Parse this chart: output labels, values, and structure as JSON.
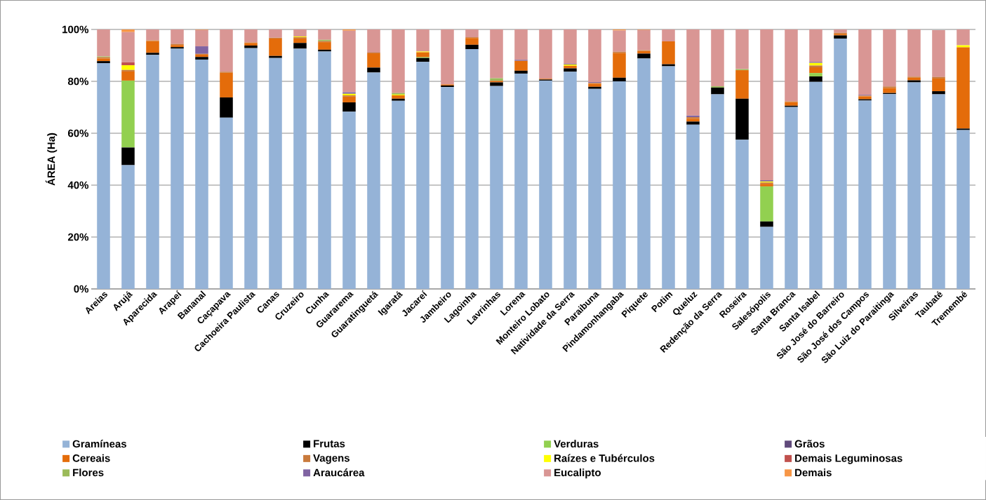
{
  "chart_data": {
    "type": "bar",
    "stacked": true,
    "ylabel": "ÁREA (Ha)",
    "ylim": [
      0,
      100
    ],
    "yticks": [
      {
        "value": 0,
        "label": "0%"
      },
      {
        "value": 20,
        "label": "20%"
      },
      {
        "value": 40,
        "label": "40%"
      },
      {
        "value": 60,
        "label": "60%"
      },
      {
        "value": 80,
        "label": "80%"
      },
      {
        "value": 100,
        "label": "100%"
      }
    ],
    "grid": "y",
    "legend": "bottom",
    "categories": [
      "Areias",
      "Arujá",
      "Aparecida",
      "Arapeí",
      "Bananal",
      "Caçapava",
      "Cachoeira Paulista",
      "Canas",
      "Cruzeiro",
      "Cunha",
      "Guararema",
      "Guaratinguetá",
      "Igaratá",
      "Jacareí",
      "Jambeiro",
      "Lagoinha",
      "Lavrinhas",
      "Lorena",
      "Monteiro Lobato",
      "Natividade da Serra",
      "Paraibuna",
      "Pindamonhangaba",
      "Piquete",
      "Potim",
      "Queluz",
      "Redenção da Serra",
      "Roseira",
      "Salesópolis",
      "Santa Branca",
      "Santa Isabel",
      "São José do Barreiro",
      "São José dos Campos",
      "São Luiz do Paraitinga",
      "Silveiras",
      "Taubaté",
      "Tremembé"
    ],
    "series": [
      {
        "name": "Gramíneas",
        "color": "#95b3d7",
        "values": [
          87,
          47.7,
          90.2,
          92.6,
          88.4,
          66,
          92.8,
          89,
          92.6,
          91.5,
          68.3,
          83.4,
          72.5,
          87.5,
          77.8,
          92.4,
          78.2,
          83,
          80.3,
          83.7,
          77.1,
          80,
          88.8,
          85.8,
          63.3,
          75,
          57.5,
          23.9,
          70.1,
          79.8,
          96.5,
          72.6,
          75.1,
          79.6,
          75,
          61.2
        ]
      },
      {
        "name": "Frutas",
        "color": "#000000",
        "values": [
          0.8,
          6.8,
          0.8,
          0.6,
          1,
          7.8,
          1,
          0.8,
          2.2,
          0.7,
          3.6,
          1.9,
          0.8,
          1.5,
          0.6,
          1.7,
          1.4,
          1.1,
          0.4,
          1.3,
          0.8,
          1.4,
          1.9,
          0.8,
          1.2,
          2.6,
          15.8,
          2.1,
          0.5,
          2.1,
          1.2,
          0.5,
          0.4,
          0.8,
          1.2,
          0.6
        ]
      },
      {
        "name": "Verduras",
        "color": "#92d050",
        "values": [
          0,
          25.8,
          0,
          0,
          0,
          0,
          0,
          0,
          0,
          0,
          0,
          0,
          0,
          0.3,
          0,
          0,
          0,
          0,
          0,
          0,
          0,
          0,
          0,
          0,
          0,
          0,
          0,
          13.5,
          0,
          1.3,
          0,
          0,
          0,
          0,
          0,
          0
        ]
      },
      {
        "name": "Grãos",
        "color": "#604a7b",
        "values": [
          0,
          0,
          0,
          0,
          0,
          0,
          0,
          0,
          0,
          0,
          0,
          0,
          0,
          0,
          0,
          0,
          0,
          0,
          0,
          0,
          0,
          0,
          0,
          0,
          0,
          0,
          0,
          0,
          0,
          0,
          0,
          0,
          0,
          0,
          0,
          0
        ]
      },
      {
        "name": "Cereais",
        "color": "#e46c0a",
        "values": [
          1,
          3.5,
          4.5,
          0.8,
          0.9,
          9.5,
          1,
          6.7,
          1.7,
          2.9,
          2.2,
          5.5,
          1.3,
          1.9,
          0.4,
          2.6,
          0.5,
          3.8,
          0.3,
          1,
          1.2,
          9.5,
          1,
          8.8,
          1.1,
          0,
          11,
          1,
          1.4,
          2.2,
          0.6,
          1.1,
          1.9,
          1,
          4.9,
          31.3
        ]
      },
      {
        "name": "Vagens",
        "color": "#c97a3c",
        "values": [
          0.5,
          0.6,
          0.3,
          0.4,
          0.3,
          0.4,
          0.2,
          0.3,
          0.5,
          0.4,
          0.5,
          0.3,
          0,
          0,
          0,
          0.3,
          0.2,
          0,
          0,
          0,
          0.3,
          0.5,
          0.3,
          0,
          0.6,
          0,
          0,
          0.5,
          0.3,
          0.7,
          0.4,
          0.3,
          0.6,
          0.4,
          0.6,
          0
        ]
      },
      {
        "name": "Raízes e Tubérculos",
        "color": "#ffff00",
        "values": [
          0,
          1.8,
          0,
          0,
          0,
          0,
          0,
          0,
          0.3,
          0,
          0.6,
          0,
          0.3,
          0.3,
          0,
          0,
          0,
          0,
          0,
          0.5,
          0,
          0,
          0,
          0,
          0,
          0,
          0,
          0.4,
          0,
          1,
          0,
          0,
          0,
          0,
          0,
          0.8
        ]
      },
      {
        "name": "Demais Leguminosas",
        "color": "#c0504d",
        "values": [
          0,
          1.2,
          0,
          0,
          0,
          0,
          0,
          0,
          0,
          0,
          0,
          0,
          0,
          0,
          0,
          0,
          0,
          0,
          0,
          0,
          0,
          0,
          0,
          0,
          0,
          0,
          0,
          0,
          0,
          0,
          0,
          0,
          0,
          0,
          0,
          0
        ]
      },
      {
        "name": "Flores",
        "color": "#9bbb59",
        "values": [
          0.3,
          0,
          0,
          0,
          0,
          0,
          0,
          0,
          0,
          0.5,
          0,
          0,
          0.6,
          0,
          0,
          0,
          0.9,
          0,
          0,
          0,
          0,
          0,
          0,
          0,
          0,
          0.5,
          0.4,
          0,
          0,
          0,
          0,
          0,
          0,
          0,
          0,
          0
        ]
      },
      {
        "name": "Araucárea",
        "color": "#8064a2",
        "values": [
          0,
          0,
          0,
          0,
          2.9,
          0,
          0,
          0,
          0,
          0,
          0.6,
          0,
          0,
          0,
          0,
          0,
          0,
          0.4,
          0,
          0.3,
          0.3,
          0,
          0,
          0,
          0.6,
          0,
          0,
          0.5,
          0,
          0.4,
          0,
          0.3,
          0,
          0,
          null,
          0
        ]
      },
      {
        "name": "Eucalipto",
        "color": "#d99694",
        "values": [
          10.4,
          11.6,
          4.2,
          5.6,
          6.3,
          16.3,
          5,
          3.2,
          2.7,
          4,
          23.7,
          8.9,
          24.5,
          8.5,
          21.2,
          3,
          18.8,
          11.7,
          19,
          13.2,
          20.3,
          8.2,
          7.8,
          4.6,
          33.2,
          21.9,
          15.3,
          58.1,
          27.7,
          12.5,
          1.3,
          25.2,
          22,
          18.2,
          18,
          6.1
        ]
      },
      {
        "name": "Demais",
        "color": "#f79646",
        "values": [
          0,
          1,
          0,
          0,
          0.2,
          0,
          0,
          0,
          0,
          0,
          0.5,
          0,
          0,
          0,
          0,
          0,
          0,
          0,
          0,
          0,
          0,
          0.4,
          0.2,
          0,
          0,
          0,
          0,
          0,
          0,
          0,
          0,
          0,
          0,
          0,
          0,
          0
        ]
      }
    ]
  }
}
